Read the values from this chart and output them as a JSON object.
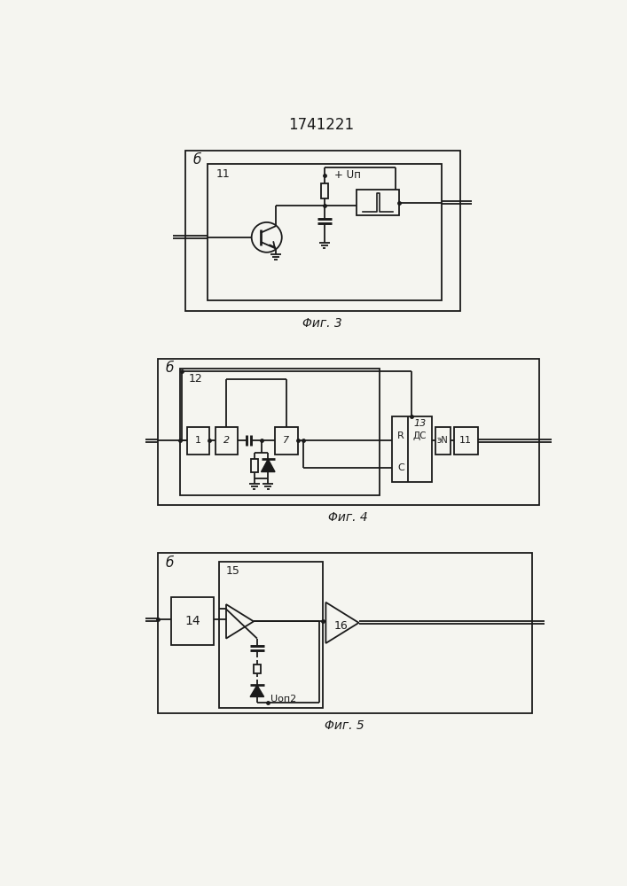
{
  "title": "1741221",
  "fig3_caption": "Φиг. 3",
  "fig4_caption": "Φиг. 4",
  "fig5_caption": "Φиг. 5",
  "bg_color": "#f5f5f0",
  "line_color": "#1a1a1a",
  "lw": 1.3
}
